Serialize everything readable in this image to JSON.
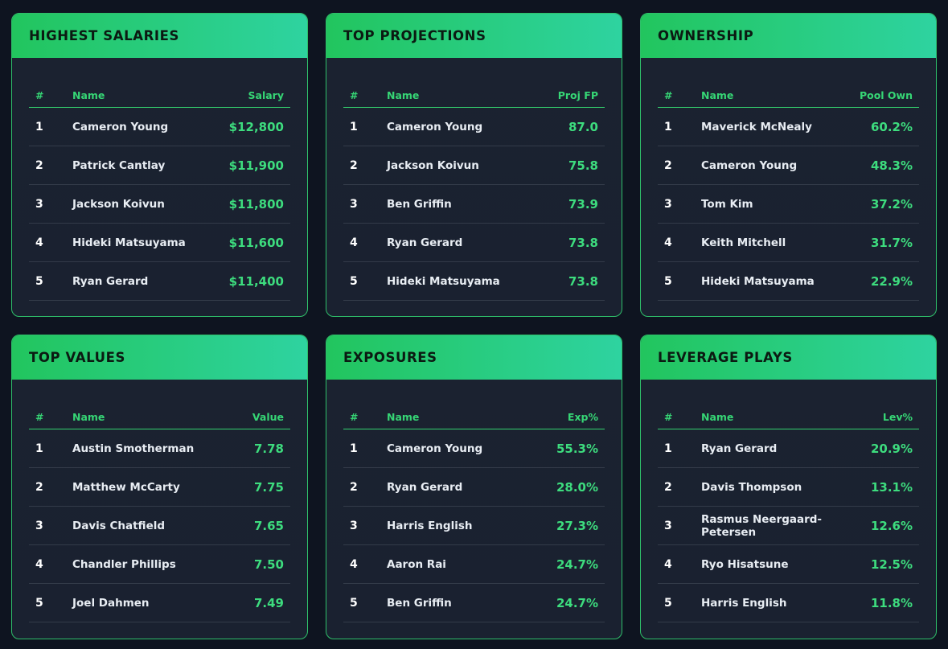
{
  "cards": [
    {
      "title": "HIGHEST SALARIES",
      "headers": {
        "rank": "#",
        "name": "Name",
        "value": "Salary"
      },
      "rows": [
        {
          "rank": "1",
          "name": "Cameron Young",
          "value": "$12,800"
        },
        {
          "rank": "2",
          "name": "Patrick Cantlay",
          "value": "$11,900"
        },
        {
          "rank": "3",
          "name": "Jackson Koivun",
          "value": "$11,800"
        },
        {
          "rank": "4",
          "name": "Hideki Matsuyama",
          "value": "$11,600"
        },
        {
          "rank": "5",
          "name": "Ryan Gerard",
          "value": "$11,400"
        }
      ]
    },
    {
      "title": "TOP PROJECTIONS",
      "headers": {
        "rank": "#",
        "name": "Name",
        "value": "Proj FP"
      },
      "rows": [
        {
          "rank": "1",
          "name": "Cameron Young",
          "value": "87.0"
        },
        {
          "rank": "2",
          "name": "Jackson Koivun",
          "value": "75.8"
        },
        {
          "rank": "3",
          "name": "Ben Griffin",
          "value": "73.9"
        },
        {
          "rank": "4",
          "name": "Ryan Gerard",
          "value": "73.8"
        },
        {
          "rank": "5",
          "name": "Hideki Matsuyama",
          "value": "73.8"
        }
      ]
    },
    {
      "title": "OWNERSHIP",
      "headers": {
        "rank": "#",
        "name": "Name",
        "value": "Pool Own"
      },
      "rows": [
        {
          "rank": "1",
          "name": "Maverick McNealy",
          "value": "60.2%"
        },
        {
          "rank": "2",
          "name": "Cameron Young",
          "value": "48.3%"
        },
        {
          "rank": "3",
          "name": "Tom Kim",
          "value": "37.2%"
        },
        {
          "rank": "4",
          "name": "Keith Mitchell",
          "value": "31.7%"
        },
        {
          "rank": "5",
          "name": "Hideki Matsuyama",
          "value": "22.9%"
        }
      ]
    },
    {
      "title": "TOP VALUES",
      "headers": {
        "rank": "#",
        "name": "Name",
        "value": "Value"
      },
      "rows": [
        {
          "rank": "1",
          "name": "Austin Smotherman",
          "value": "7.78"
        },
        {
          "rank": "2",
          "name": "Matthew McCarty",
          "value": "7.75"
        },
        {
          "rank": "3",
          "name": "Davis Chatfield",
          "value": "7.65"
        },
        {
          "rank": "4",
          "name": "Chandler Phillips",
          "value": "7.50"
        },
        {
          "rank": "5",
          "name": "Joel Dahmen",
          "value": "7.49"
        }
      ]
    },
    {
      "title": "EXPOSURES",
      "headers": {
        "rank": "#",
        "name": "Name",
        "value": "Exp%"
      },
      "rows": [
        {
          "rank": "1",
          "name": "Cameron Young",
          "value": "55.3%"
        },
        {
          "rank": "2",
          "name": "Ryan Gerard",
          "value": "28.0%"
        },
        {
          "rank": "3",
          "name": "Harris English",
          "value": "27.3%"
        },
        {
          "rank": "4",
          "name": "Aaron Rai",
          "value": "24.7%"
        },
        {
          "rank": "5",
          "name": "Ben Griffin",
          "value": "24.7%"
        }
      ]
    },
    {
      "title": "LEVERAGE PLAYS",
      "headers": {
        "rank": "#",
        "name": "Name",
        "value": "Lev%"
      },
      "rows": [
        {
          "rank": "1",
          "name": "Ryan Gerard",
          "value": "20.9%"
        },
        {
          "rank": "2",
          "name": "Davis Thompson",
          "value": "13.1%"
        },
        {
          "rank": "3",
          "name": "Rasmus Neergaard-Petersen",
          "value": "12.6%"
        },
        {
          "rank": "4",
          "name": "Ryo Hisatsune",
          "value": "12.5%"
        },
        {
          "rank": "5",
          "name": "Harris English",
          "value": "11.8%"
        }
      ]
    }
  ],
  "colors": {
    "accent": "#22c55e",
    "accent_end": "#2ed3a0",
    "value_text": "#3ddc7e",
    "background": "#0e1420",
    "card_background": "#1b2230"
  }
}
